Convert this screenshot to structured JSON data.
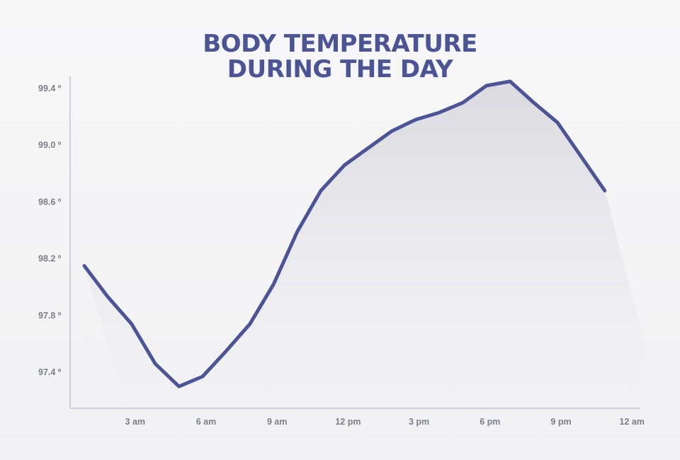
{
  "chart_data": {
    "type": "area",
    "title_lines": [
      "BODY TEMPERATURE",
      "DURING THE DAY"
    ],
    "xlabel": "",
    "ylabel": "",
    "x_tick_labels": [
      "3 am",
      "6 am",
      "9 am",
      "12 pm",
      "3 pm",
      "6 pm",
      "9 pm",
      "12 am"
    ],
    "y_tick_labels": [
      "99.4 º",
      "99.0 º",
      "98.6 º",
      "98.2 º",
      "97.8 º",
      "97.4 º"
    ],
    "y_ticks": [
      99.4,
      99.0,
      98.6,
      98.2,
      97.8,
      97.4
    ],
    "ylim": [
      97.16,
      99.5
    ],
    "x_hours": [
      1,
      2,
      3,
      4,
      5,
      6,
      7,
      8,
      9,
      10,
      11,
      12,
      13,
      14,
      15,
      16,
      17,
      18,
      19,
      20,
      21,
      22,
      23
    ],
    "values": [
      98.15,
      97.93,
      97.74,
      97.46,
      97.3,
      97.37,
      97.55,
      97.74,
      98.02,
      98.39,
      98.68,
      98.86,
      98.98,
      99.1,
      99.18,
      99.23,
      99.3,
      99.42,
      99.45,
      99.3,
      99.16,
      98.92,
      98.68
    ],
    "line_color": "#4b5494",
    "area_color": "#dcdce1",
    "axis_color": "#d0d0d6",
    "grid": false,
    "legend": "none"
  }
}
